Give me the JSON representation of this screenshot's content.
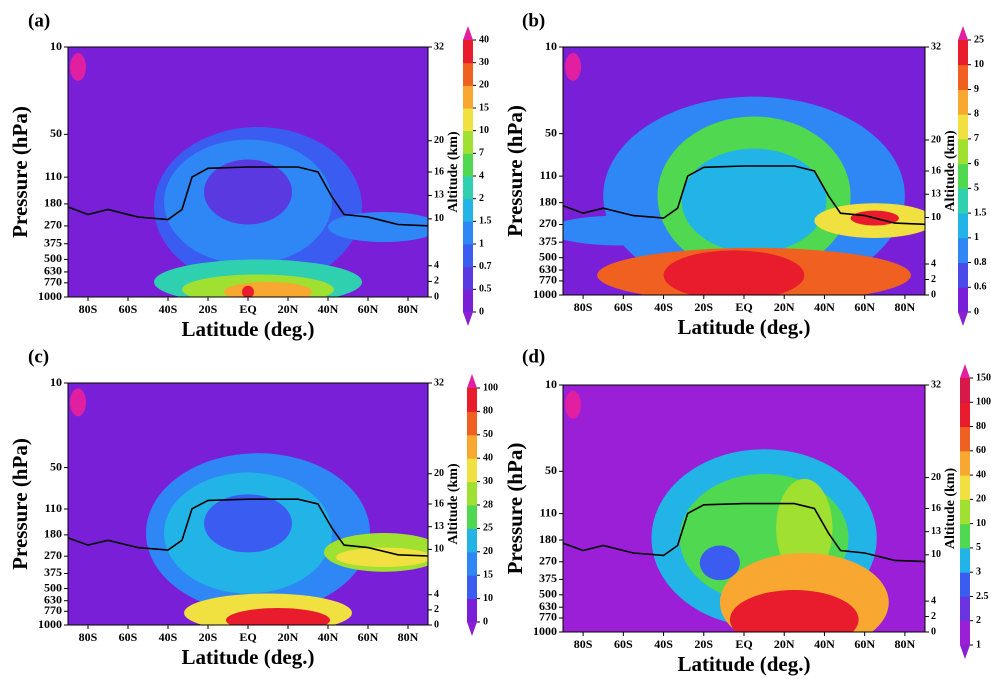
{
  "chart_data": [
    {
      "type": "contour",
      "panel_label": "(a)",
      "ylabel": "Pressure (hPa)",
      "xlabel": "Latitude (deg.)",
      "y2label": "Altitude (km)",
      "log_y": true,
      "ylim": [
        1000,
        10
      ],
      "yticks": [
        10,
        50,
        110,
        180,
        270,
        375,
        500,
        630,
        770,
        1000
      ],
      "y2lim": [
        0,
        32
      ],
      "y2ticks": [
        32,
        20,
        16,
        13,
        10,
        4,
        2,
        0
      ],
      "xlim": [
        -90,
        90
      ],
      "xticks": [
        {
          "value": -80,
          "label": "80S"
        },
        {
          "value": -60,
          "label": "60S"
        },
        {
          "value": -40,
          "label": "40S"
        },
        {
          "value": -20,
          "label": "20S"
        },
        {
          "value": 0,
          "label": "EQ"
        },
        {
          "value": 20,
          "label": "20N"
        },
        {
          "value": 40,
          "label": "40N"
        },
        {
          "value": 60,
          "label": "60N"
        },
        {
          "value": 80,
          "label": "80N"
        }
      ],
      "colorbar": {
        "levels": [
          0,
          0.5,
          0.7,
          1,
          1.5,
          2,
          4,
          7,
          10,
          15,
          20,
          30,
          40
        ],
        "colors": [
          "#7a1fd8",
          "#5a3ae0",
          "#3a5cf0",
          "#2f86f5",
          "#22b4e6",
          "#2fd0b0",
          "#50d850",
          "#a0e030",
          "#f0e040",
          "#f8a830",
          "#f06020",
          "#e81c2c"
        ],
        "over_color": "#e020a0",
        "under_color": "#8a20d0"
      }
    },
    {
      "type": "contour",
      "panel_label": "(b)",
      "ylabel": "Pressure (hPa)",
      "xlabel": "Latitude (deg.)",
      "y2label": "Altitude (km)",
      "log_y": true,
      "ylim": [
        1000,
        10
      ],
      "yticks": [
        10,
        50,
        110,
        180,
        270,
        375,
        500,
        630,
        770,
        1000
      ],
      "y2lim": [
        0,
        32
      ],
      "y2ticks": [
        32,
        20,
        16,
        13,
        10,
        4,
        2,
        0
      ],
      "xlim": [
        -90,
        90
      ],
      "xticks": [
        {
          "value": -80,
          "label": "80S"
        },
        {
          "value": -60,
          "label": "60S"
        },
        {
          "value": -40,
          "label": "40S"
        },
        {
          "value": -20,
          "label": "20S"
        },
        {
          "value": 0,
          "label": "EQ"
        },
        {
          "value": 20,
          "label": "20N"
        },
        {
          "value": 40,
          "label": "40N"
        },
        {
          "value": 60,
          "label": "60N"
        },
        {
          "value": 80,
          "label": "80N"
        }
      ],
      "colorbar": {
        "levels": [
          0,
          0.6,
          0.8,
          1,
          1.5,
          5,
          6,
          7,
          8,
          9,
          10,
          25
        ],
        "colors": [
          "#7a1fd8",
          "#4a4ae8",
          "#2f86f5",
          "#22b4e6",
          "#2fd0b0",
          "#50d850",
          "#a0e030",
          "#f0e040",
          "#f8a830",
          "#f06020",
          "#e81c2c"
        ],
        "over_color": "#e020a0",
        "under_color": "#8a20d0"
      }
    },
    {
      "type": "contour",
      "panel_label": "(c)",
      "ylabel": "Pressure (hPa)",
      "xlabel": "Latitude (deg.)",
      "y2label": "Altitude (km)",
      "log_y": true,
      "ylim": [
        1000,
        10
      ],
      "yticks": [
        10,
        50,
        110,
        180,
        270,
        375,
        500,
        630,
        770,
        1000
      ],
      "y2lim": [
        0,
        32
      ],
      "y2ticks": [
        32,
        20,
        16,
        13,
        10,
        4,
        2,
        0
      ],
      "xlim": [
        -90,
        90
      ],
      "xticks": [
        {
          "value": -80,
          "label": "80S"
        },
        {
          "value": -60,
          "label": "60S"
        },
        {
          "value": -40,
          "label": "40S"
        },
        {
          "value": -20,
          "label": "20S"
        },
        {
          "value": 0,
          "label": "EQ"
        },
        {
          "value": 20,
          "label": "20N"
        },
        {
          "value": 40,
          "label": "40N"
        },
        {
          "value": 60,
          "label": "60N"
        },
        {
          "value": 80,
          "label": "80N"
        }
      ],
      "colorbar": {
        "levels": [
          0,
          10,
          15,
          20,
          25,
          28,
          30,
          40,
          50,
          80,
          100
        ],
        "colors": [
          "#7a1fd8",
          "#3a5cf0",
          "#2f86f5",
          "#22b4e6",
          "#50d850",
          "#a0e030",
          "#f0e040",
          "#f8a830",
          "#f06020",
          "#e81c2c"
        ],
        "over_color": "#e020a0",
        "under_color": "#8a20d0"
      }
    },
    {
      "type": "contour",
      "panel_label": "(d)",
      "ylabel": "Pressure (hPa)",
      "xlabel": "Latitude (deg.)",
      "y2label": "Altitude (km)",
      "log_y": true,
      "ylim": [
        1000,
        10
      ],
      "yticks": [
        10,
        50,
        110,
        180,
        270,
        375,
        500,
        630,
        770,
        1000
      ],
      "y2lim": [
        0,
        32
      ],
      "y2ticks": [
        32,
        20,
        16,
        13,
        10,
        4,
        2,
        0
      ],
      "xlim": [
        -90,
        90
      ],
      "xticks": [
        {
          "value": -80,
          "label": "80S"
        },
        {
          "value": -60,
          "label": "60S"
        },
        {
          "value": -40,
          "label": "40S"
        },
        {
          "value": -20,
          "label": "20S"
        },
        {
          "value": 0,
          "label": "EQ"
        },
        {
          "value": 20,
          "label": "20N"
        },
        {
          "value": 40,
          "label": "40N"
        },
        {
          "value": 60,
          "label": "60N"
        },
        {
          "value": 80,
          "label": "80N"
        }
      ],
      "colorbar": {
        "levels": [
          1,
          2,
          2.5,
          3,
          5,
          10,
          20,
          40,
          60,
          80,
          100,
          150
        ],
        "colors": [
          "#9a1fd6",
          "#6a35e0",
          "#3a5cf0",
          "#22b4e6",
          "#50d850",
          "#a0e030",
          "#f0e040",
          "#f8a830",
          "#f06020",
          "#e81c2c",
          "#d81848"
        ],
        "over_color": "#e020a0",
        "under_color": "#8a20d0"
      }
    }
  ]
}
